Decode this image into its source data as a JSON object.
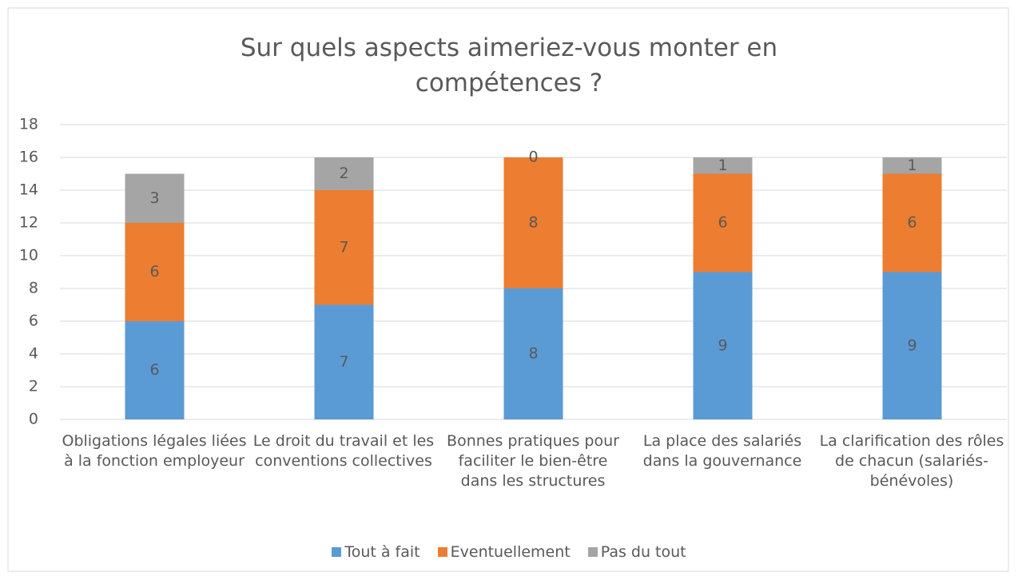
{
  "chart_data": {
    "type": "stacked_bar",
    "title": "Sur quels aspects aimeriez-vous monter en compétences ?",
    "categories": [
      "Obligations légales liées à la fonction employeur",
      "Le droit du travail et les conventions collectives",
      "Bonnes pratiques pour faciliter le bien-être dans les structures",
      "La place des salariés dans la gouvernance",
      "La clarification des rôles de chacun (salariés-bénévoles)"
    ],
    "series": [
      {
        "name": "Tout à fait",
        "color": "#5b9bd5",
        "values": [
          6,
          7,
          8,
          9,
          9
        ]
      },
      {
        "name": "Eventuellement",
        "color": "#ed7d31",
        "values": [
          6,
          7,
          8,
          6,
          6
        ]
      },
      {
        "name": "Pas du tout",
        "color": "#a5a5a5",
        "values": [
          3,
          2,
          0,
          1,
          1
        ]
      }
    ],
    "ylim": [
      0,
      18
    ],
    "yticks": [
      0,
      2,
      4,
      6,
      8,
      10,
      12,
      14,
      16,
      18
    ],
    "grid": true,
    "legend": "bottom"
  }
}
